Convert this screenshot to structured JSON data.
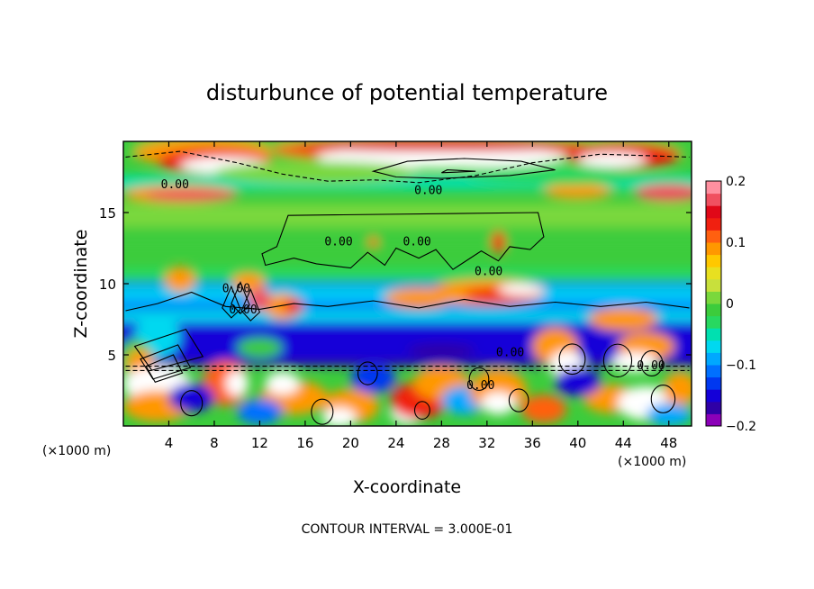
{
  "chart_data": {
    "type": "heatmap",
    "title": "disturbunce of potential temperature",
    "xlabel": "X-coordinate",
    "ylabel": "Z-coordinate",
    "x_unit": "(×1000 m)",
    "z_unit": "(×1000 m)",
    "xlim": [
      0,
      50
    ],
    "ylim": [
      0,
      20
    ],
    "x_ticks": [
      "4",
      "8",
      "12",
      "16",
      "20",
      "24",
      "28",
      "32",
      "36",
      "40",
      "44",
      "48"
    ],
    "y_ticks": [
      "5",
      "10",
      "15"
    ],
    "colorbar": {
      "range": [
        -0.2,
        0.2
      ],
      "tick_labels": [
        "0.2",
        "0.1",
        "0",
        "−0.1",
        "−0.2"
      ],
      "colors": [
        "#8b00b8",
        "#2f00a6",
        "#1400d8",
        "#0038f0",
        "#0070ff",
        "#00a8ff",
        "#00d8f0",
        "#00e0b0",
        "#28d860",
        "#3ccc3c",
        "#7ad83c",
        "#c8e03c",
        "#e8e020",
        "#ffc800",
        "#ff9800",
        "#ff6010",
        "#f02010",
        "#e00818",
        "#f05060",
        "#ff90a0"
      ]
    },
    "contour_labels": [
      "0.00",
      "0.00",
      "0.00",
      "0.00",
      "0.00",
      "0.00",
      "0.00",
      "0.00",
      "0.00",
      "0.00"
    ],
    "contour_interval_text": "CONTOUR INTERVAL = 3.000E-01",
    "contour_lines": true,
    "grid": false
  }
}
